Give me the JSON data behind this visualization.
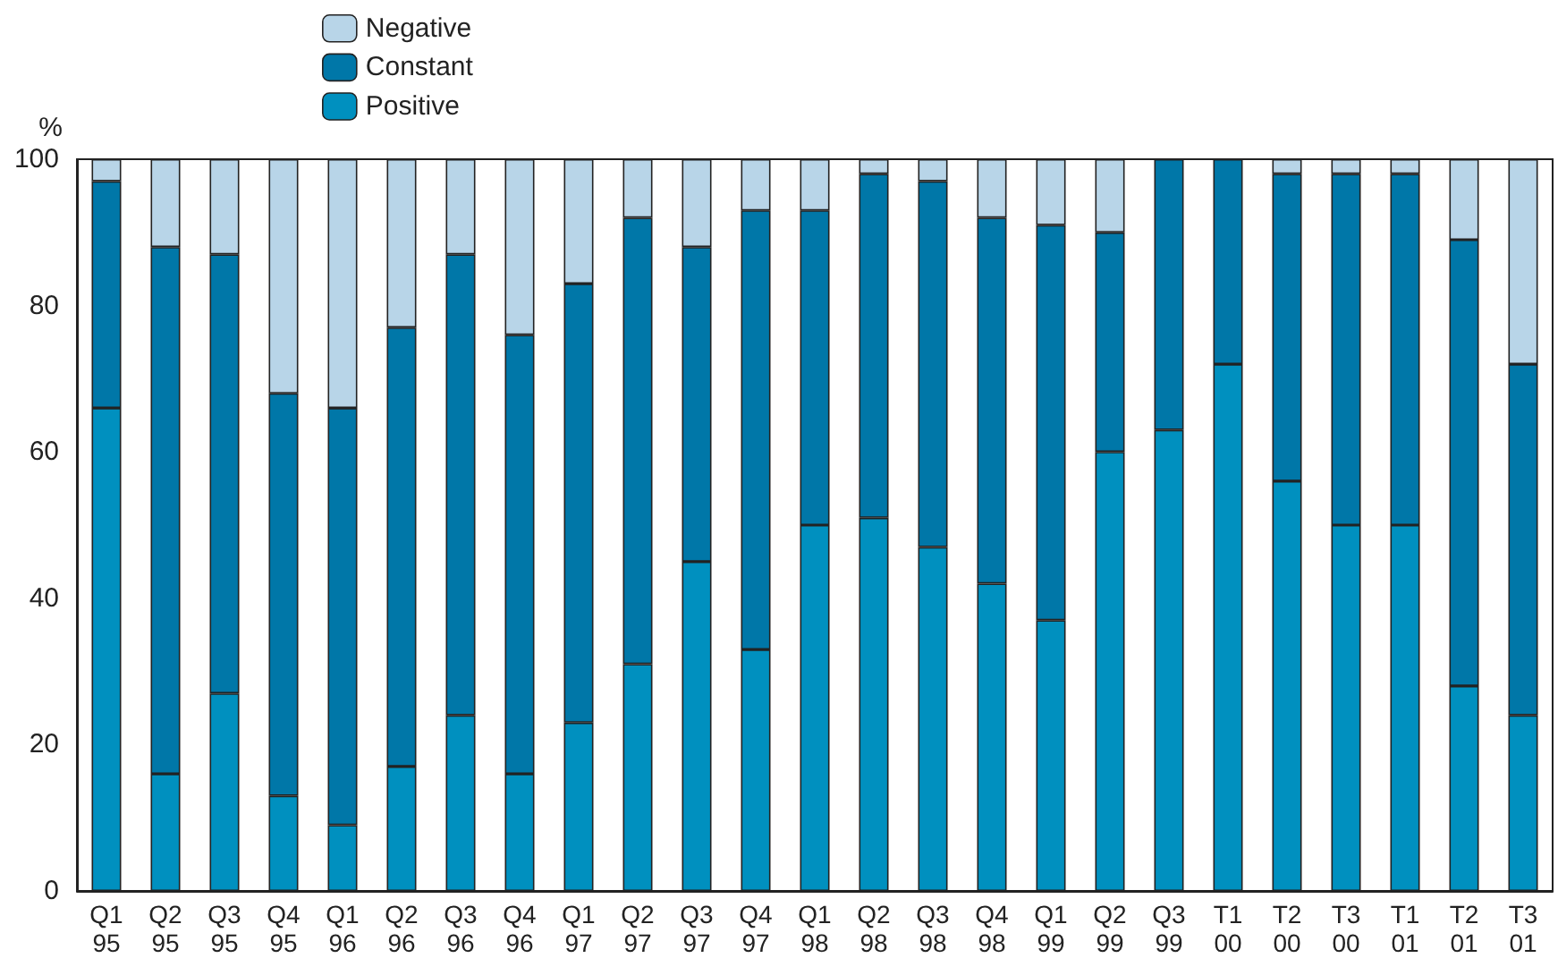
{
  "chart_data": {
    "type": "bar",
    "stacked": true,
    "ylabel": "%",
    "categories": [
      "Q1\n95",
      "Q2\n95",
      "Q3\n95",
      "Q4\n95",
      "Q1\n96",
      "Q2\n96",
      "Q3\n96",
      "Q4\n96",
      "Q1\n97",
      "Q2\n97",
      "Q3\n97",
      "Q4\n97",
      "Q1\n98",
      "Q2\n98",
      "Q3\n98",
      "Q4\n98",
      "Q1\n99",
      "Q2\n99",
      "Q3\n99",
      "T1\n00",
      "T2\n00",
      "T3\n00",
      "T1\n01",
      "T2\n01",
      "T3\n01"
    ],
    "series": [
      {
        "name": "Positive",
        "color": "#0090bf",
        "values": [
          66,
          16,
          27,
          13,
          9,
          17,
          24,
          16,
          23,
          31,
          45,
          33,
          50,
          51,
          47,
          42,
          37,
          60,
          63,
          72,
          56,
          50,
          50,
          28,
          24
        ]
      },
      {
        "name": "Constant",
        "color": "#0077a8",
        "values": [
          31,
          72,
          60,
          55,
          57,
          60,
          63,
          60,
          60,
          61,
          43,
          60,
          43,
          47,
          50,
          50,
          54,
          30,
          37,
          28,
          42,
          48,
          48,
          61,
          48
        ]
      },
      {
        "name": "Negative",
        "color": "#b8d5e8",
        "values": [
          3,
          12,
          13,
          32,
          34,
          23,
          13,
          24,
          17,
          8,
          12,
          7,
          7,
          2,
          3,
          8,
          9,
          10,
          0,
          0,
          2,
          2,
          2,
          11,
          28
        ]
      }
    ],
    "ylim": [
      0,
      100
    ],
    "yticks": [
      0,
      20,
      40,
      60,
      80,
      100
    ],
    "grid": false,
    "legend": "top"
  }
}
